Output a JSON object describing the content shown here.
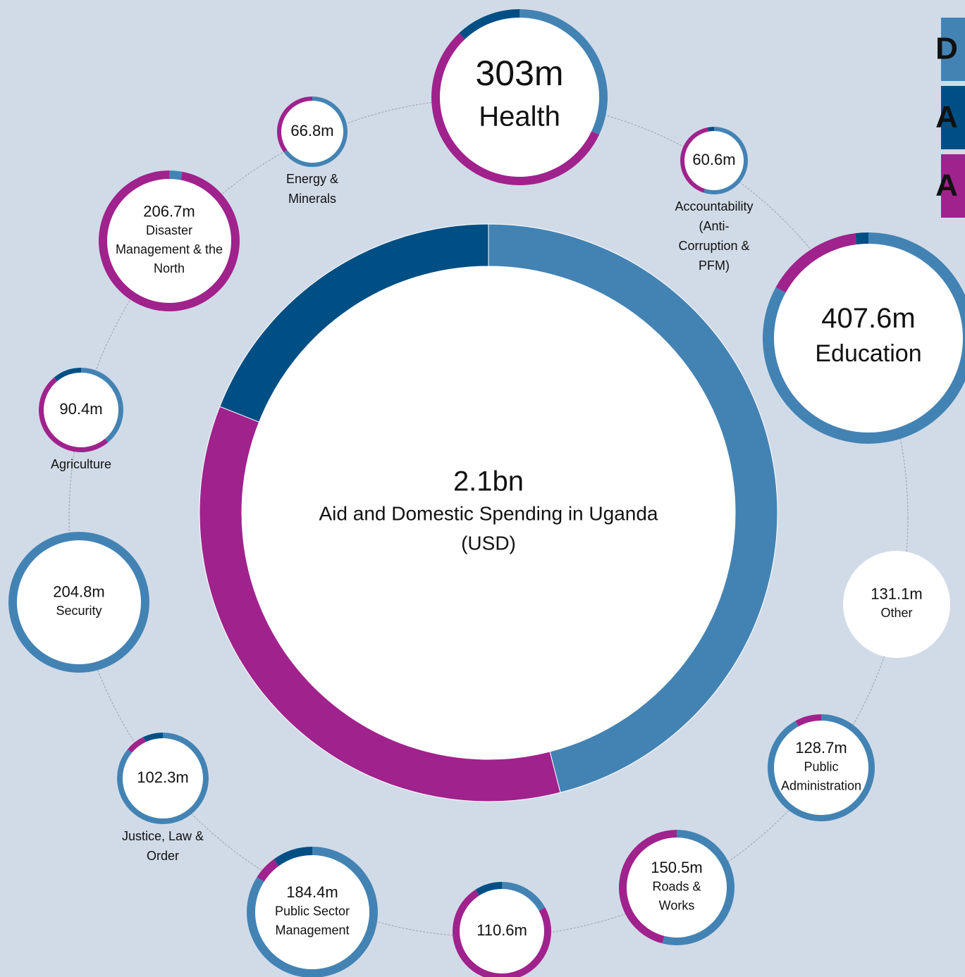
{
  "chart_data": {
    "type": "donut",
    "series": [
      {
        "name": "D",
        "color": "#4383b4"
      },
      {
        "name": "A",
        "color": "#004f84"
      },
      {
        "name": "A",
        "color": "#a0228c"
      }
    ],
    "rings": [
      {
        "value_label": "2.1bn",
        "label": [
          "Aid and Domestic Spending in Uganda",
          "(USD)"
        ],
        "values": [
          46,
          19,
          35
        ]
      },
      {
        "value_label": "303m",
        "label": [
          "Health"
        ],
        "values": [
          32,
          12,
          56
        ]
      },
      {
        "value_label": "407.6m",
        "label": [
          "Education"
        ],
        "values": [
          83,
          2,
          15
        ]
      },
      {
        "value_label": "60.6m",
        "label": [
          "Accountability",
          "(Anti-",
          "Corruption &",
          "PFM)"
        ],
        "values": [
          55,
          3,
          42
        ]
      },
      {
        "value_label": "66.8m",
        "label": [
          "Energy &",
          "Minerals"
        ],
        "values": [
          65,
          0,
          35
        ]
      },
      {
        "value_label": "206.7m",
        "label": [
          "Disaster",
          "Management & the",
          "North"
        ],
        "values": [
          3,
          0,
          97
        ]
      },
      {
        "value_label": "90.4m",
        "label": [
          "Agriculture"
        ],
        "values": [
          39,
          11,
          50
        ]
      },
      {
        "value_label": "204.8m",
        "label": [
          "Security"
        ],
        "values": [
          100,
          0,
          0
        ]
      },
      {
        "value_label": "102.3m",
        "label": [
          "Justice, Law &",
          "Order"
        ],
        "values": [
          86,
          7,
          7
        ]
      },
      {
        "value_label": "184.4m",
        "label": [
          "Public Sector",
          "Management"
        ],
        "values": [
          84,
          10,
          6
        ]
      },
      {
        "value_label": "110.6m",
        "label": [],
        "values": [
          17,
          9,
          74
        ]
      },
      {
        "value_label": "150.5m",
        "label": [
          "Roads &",
          "Works"
        ],
        "values": [
          54,
          0,
          46
        ]
      },
      {
        "value_label": "128.7m",
        "label": [
          "Public",
          "Administration"
        ],
        "values": [
          92,
          0,
          8
        ]
      },
      {
        "value_label": "131.1m",
        "label": [
          "Other"
        ],
        "values": [
          0,
          0,
          0
        ]
      }
    ]
  }
}
